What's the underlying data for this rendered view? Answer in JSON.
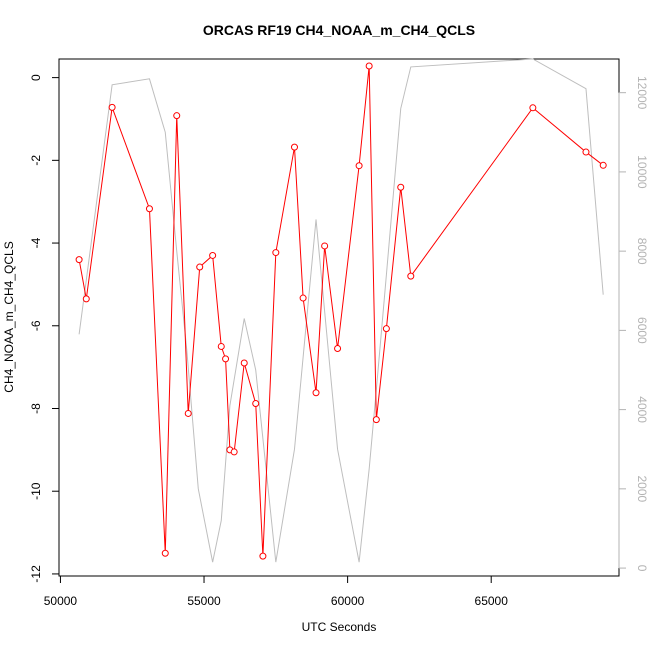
{
  "chart_data": {
    "type": "line",
    "title": "ORCAS RF19 CH4_NOAA_m_CH4_QCLS",
    "xlabel": "UTC Seconds",
    "ylabel": "CH4_NOAA_m_CH4_QCLS",
    "xlim": [
      49950,
      69450
    ],
    "ylim": [
      -12.05,
      0.45
    ],
    "y2lim": [
      -200,
      12850
    ],
    "x_ticks": [
      50000,
      55000,
      60000,
      65000
    ],
    "x_tick_labels": [
      "50000",
      "55000",
      "60000",
      "65000"
    ],
    "y_ticks": [
      0,
      -2,
      -4,
      -6,
      -8,
      -10,
      -12
    ],
    "y_tick_labels": [
      "0",
      "-2",
      "-4",
      "-6",
      "-8",
      "-10",
      "-12"
    ],
    "y2_ticks": [
      0,
      2000,
      4000,
      6000,
      8000,
      10000,
      12000
    ],
    "y2_tick_labels": [
      "0",
      "2000",
      "4000",
      "6000",
      "8000",
      "10000",
      "12000"
    ],
    "grid": false,
    "colors": {
      "primary": "#ff0000",
      "secondary": "#bebebe",
      "axis": "#000000",
      "right_axis": "#b3b3b3"
    },
    "series": [
      {
        "axis": "left",
        "style": "line+points",
        "x": [
          50650,
          50900,
          51800,
          53100,
          53650,
          54050,
          54450,
          54850,
          55300,
          55600,
          55750,
          55900,
          56050,
          56400,
          56800,
          57050,
          57500,
          58150,
          58450,
          58900,
          59200,
          59650,
          60400,
          60750,
          61000,
          61350,
          61850,
          62200,
          66450,
          68300,
          68900
        ],
        "y": [
          -4.4,
          -5.35,
          -0.72,
          -3.17,
          -11.5,
          -0.92,
          -8.12,
          -4.58,
          -4.3,
          -6.5,
          -6.8,
          -9.0,
          -9.05,
          -6.9,
          -7.88,
          -11.57,
          -4.23,
          -1.68,
          -5.33,
          -7.62,
          -4.07,
          -6.55,
          -2.13,
          0.28,
          -8.27,
          -6.07,
          -2.65,
          -4.8,
          -0.73,
          -1.8,
          -2.12
        ]
      },
      {
        "axis": "right",
        "style": "line",
        "x": [
          50650,
          51800,
          53100,
          53650,
          54050,
          54400,
          54800,
          55300,
          55600,
          55900,
          56400,
          56800,
          57500,
          58150,
          58900,
          59650,
          60400,
          60750,
          61000,
          61350,
          61850,
          62200,
          66450,
          68300,
          68900
        ],
        "y": [
          5900,
          12200,
          12350,
          11000,
          8000,
          5500,
          2000,
          150,
          1200,
          4100,
          6300,
          5000,
          150,
          3000,
          8800,
          3000,
          150,
          2500,
          4500,
          7400,
          11600,
          12650,
          12850,
          12100,
          6900
        ]
      }
    ]
  }
}
